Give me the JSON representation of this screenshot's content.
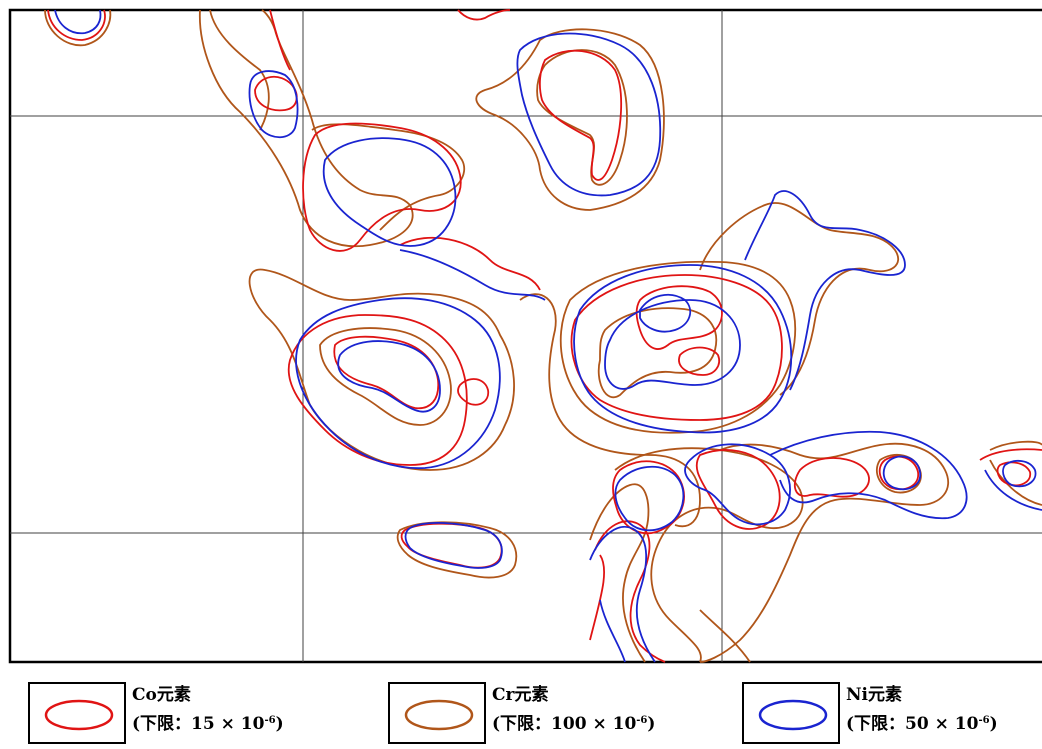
{
  "colors": {
    "co": "#e01414",
    "cr": "#b0561a",
    "ni": "#1a24d0",
    "grid": "#404040",
    "frame": "#000000"
  },
  "legend": [
    {
      "element": "Co元素",
      "limit_prefix": "(下限：15 × 10",
      "limit_exp": "-6",
      "limit_suffix": ")",
      "color_key": "co"
    },
    {
      "element": "Cr元素",
      "limit_prefix": "(下限：100 × 10",
      "limit_exp": "-6",
      "limit_suffix": ")",
      "color_key": "cr"
    },
    {
      "element": "Ni元素",
      "limit_prefix": "(下限：50 × 10",
      "limit_exp": "-6",
      "limit_suffix": ")",
      "color_key": "ni"
    }
  ]
}
